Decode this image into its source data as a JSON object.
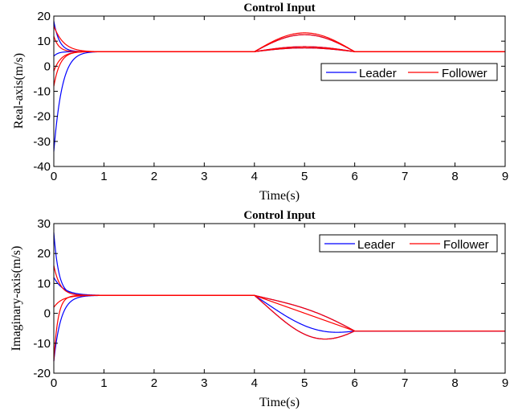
{
  "colors": {
    "leader": "#0000ff",
    "follower": "#ff0000",
    "axis": "#000000"
  },
  "chart_data": [
    {
      "type": "line",
      "title": "Control Input",
      "xlabel": "Time(s)",
      "ylabel": "Real-axis(m/s)",
      "xlim": [
        0,
        9
      ],
      "ylim": [
        -40,
        20
      ],
      "xticks": [
        0,
        1,
        2,
        3,
        4,
        5,
        6,
        7,
        8,
        9
      ],
      "yticks": [
        -40,
        -30,
        -20,
        -10,
        0,
        10,
        20
      ],
      "legend": {
        "position": "right-middle",
        "entries": [
          "Leader",
          "Follower"
        ]
      },
      "grid": false,
      "steady_value": 5.8,
      "bump": {
        "start": 4,
        "end": 6,
        "peaks": [
          7.3,
          7.8,
          12.6,
          13.3
        ]
      },
      "series": [
        {
          "name": "Leader",
          "color": "#0000ff",
          "initials": [
            18,
            -34,
            4
          ]
        },
        {
          "name": "Follower",
          "color": "#ff0000",
          "initials": [
            16,
            -8,
            12,
            -2
          ]
        }
      ]
    },
    {
      "type": "line",
      "title": "Control Input",
      "xlabel": "Time(s)",
      "ylabel": "Imaginary-axis(m/s)",
      "xlim": [
        0,
        9
      ],
      "ylim": [
        -20,
        30
      ],
      "xticks": [
        0,
        1,
        2,
        3,
        4,
        5,
        6,
        7,
        8,
        9
      ],
      "yticks": [
        -20,
        -10,
        0,
        10,
        20,
        30
      ],
      "legend": {
        "position": "top-right",
        "entries": [
          "Leader",
          "Follower"
        ]
      },
      "grid": false,
      "value_before": 6.0,
      "value_after": -5.9,
      "transition": {
        "start": 4,
        "end": 6,
        "dips": [
          -2.2,
          -1.3,
          0.5,
          0.0
        ]
      },
      "series": [
        {
          "name": "Leader",
          "color": "#0000ff",
          "initials": [
            27,
            -16,
            12
          ]
        },
        {
          "name": "Follower",
          "color": "#ff0000",
          "initials": [
            -16,
            16,
            2
          ]
        }
      ]
    }
  ]
}
